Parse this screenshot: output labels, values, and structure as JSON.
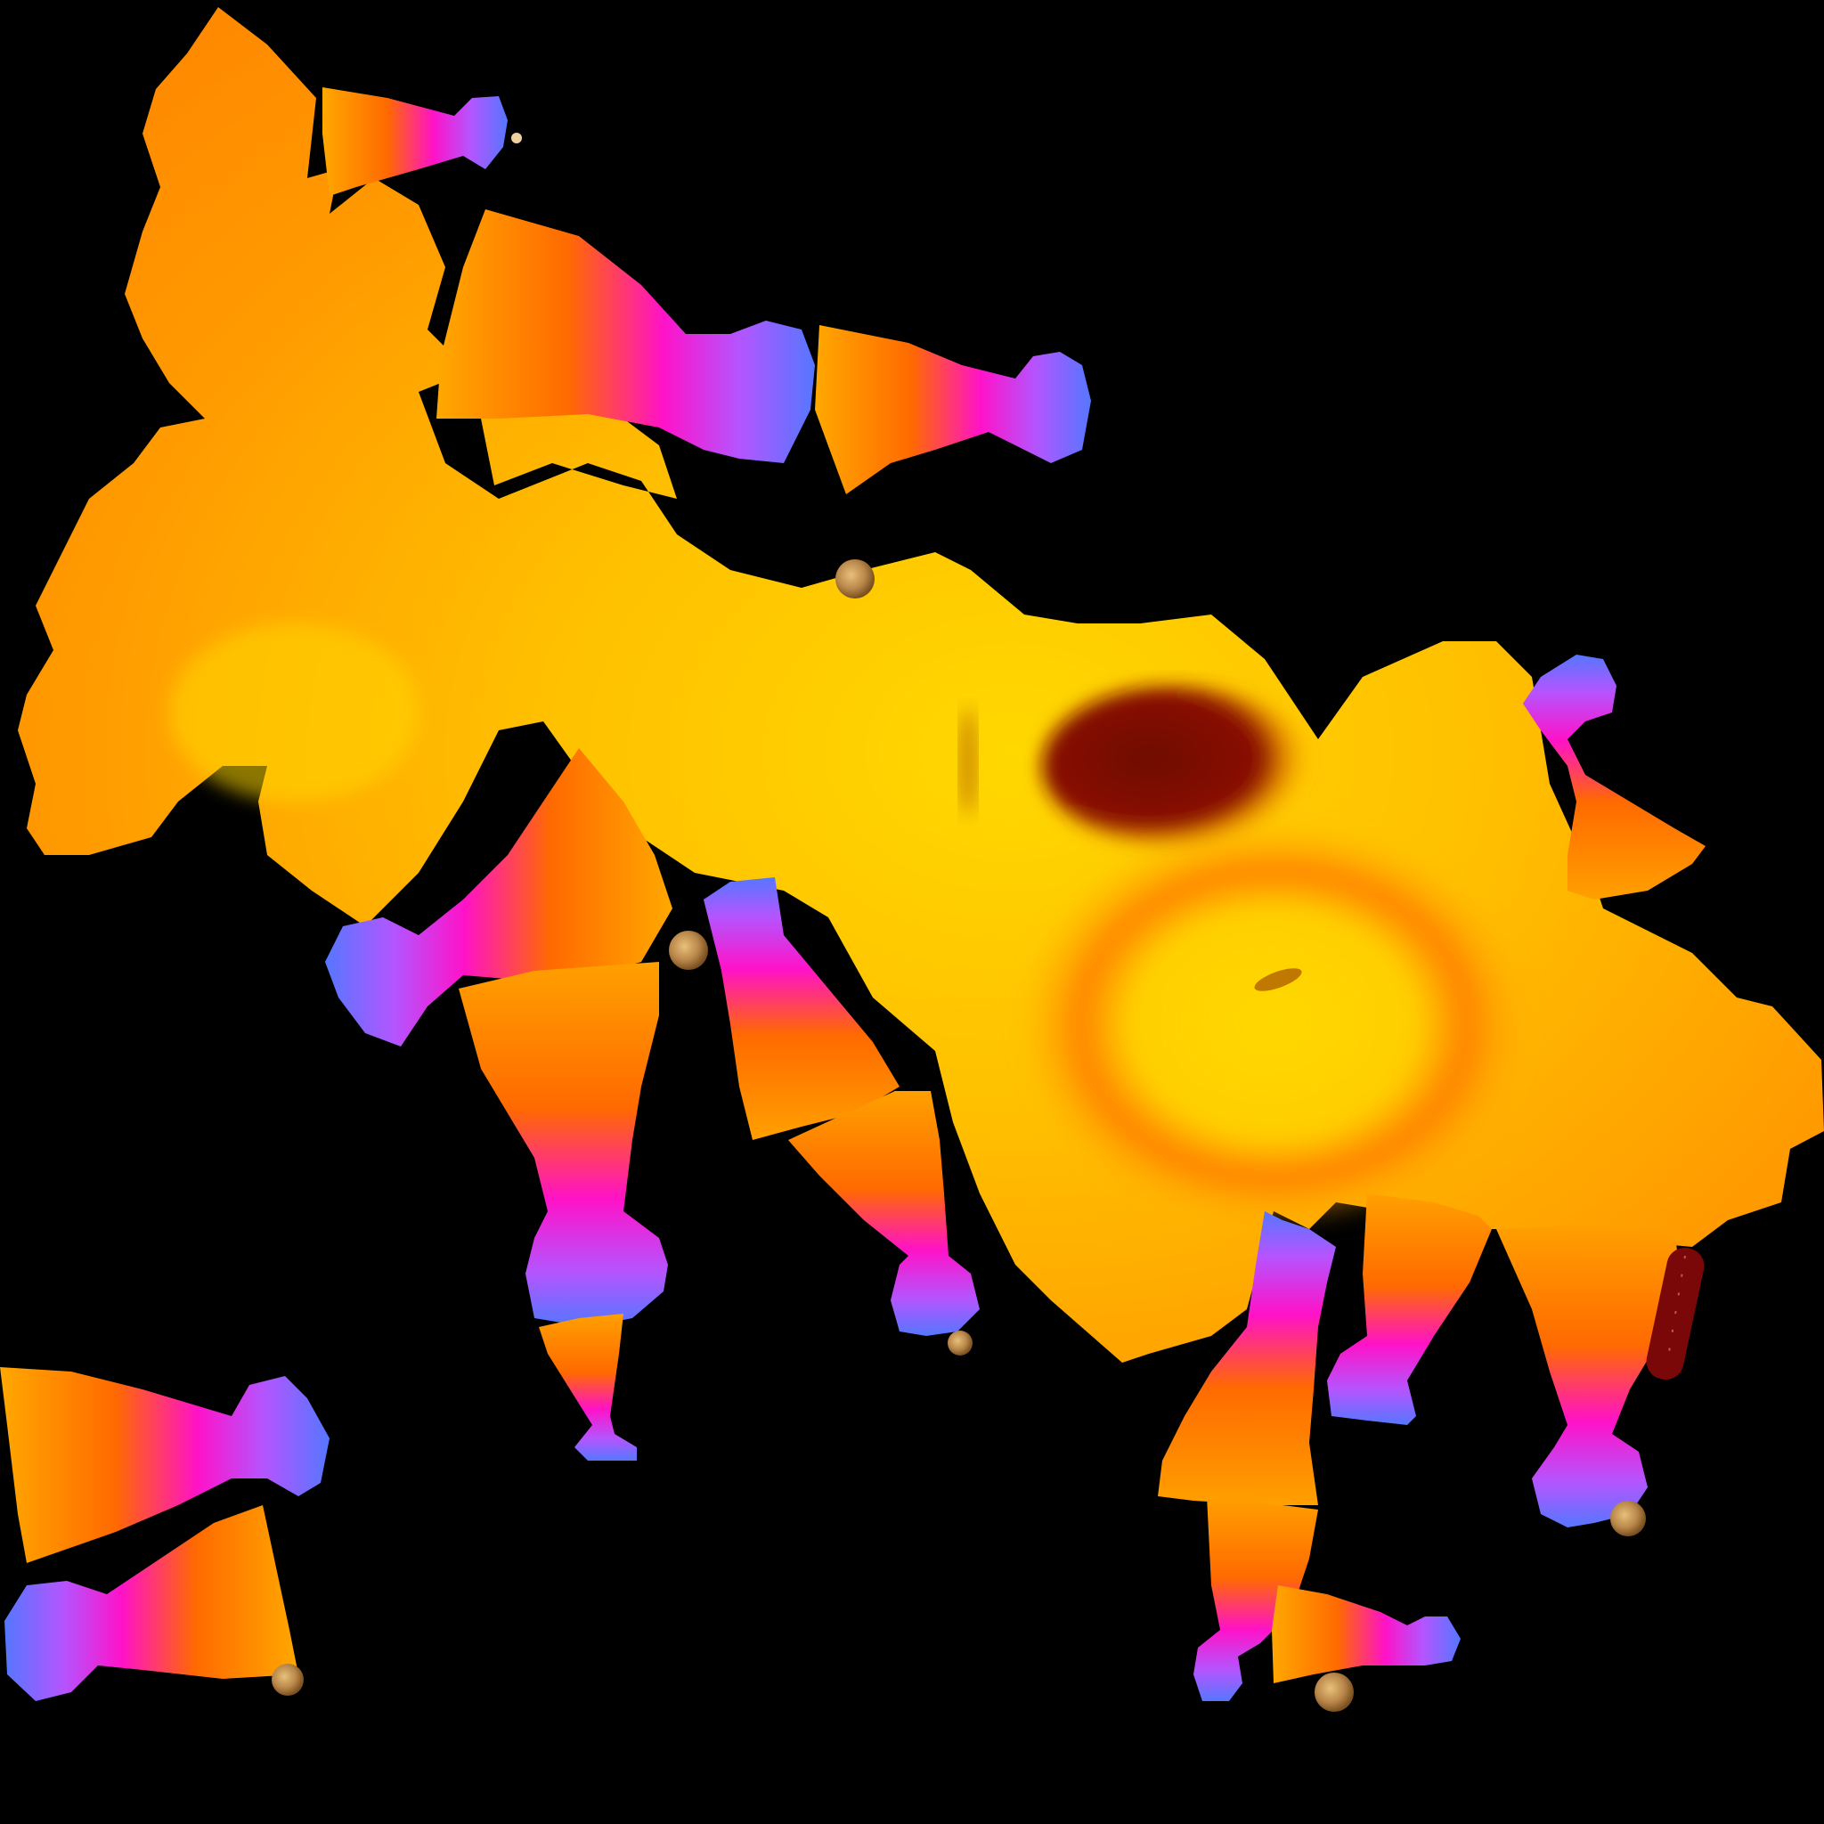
{
  "image": {
    "kind": "texture-atlas",
    "background": "#000000",
    "palette": {
      "yellow": "#ffd400",
      "gold": "#ffb300",
      "orange": "#ff7a00",
      "deep_orange": "#ff6a00",
      "magenta": "#ff10c8",
      "blue": "#5577ff",
      "violet": "#9955ff",
      "dark_red": "#7a0808",
      "brown_dot": "#b9874a"
    },
    "parts": {
      "body": "body-blob",
      "limb_segments": 16,
      "sphere_dots": 7
    }
  }
}
